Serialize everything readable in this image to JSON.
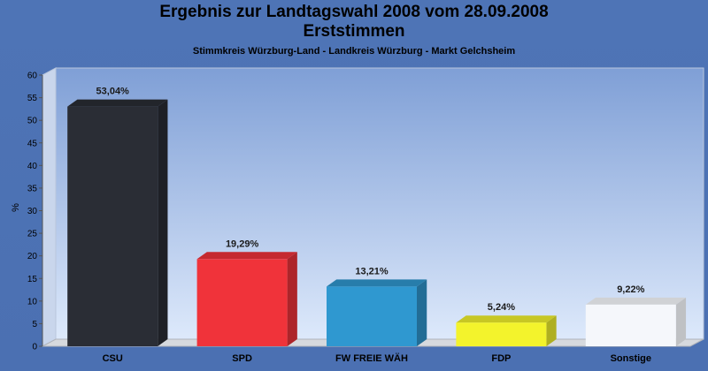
{
  "header": {
    "title_line1": "Ergebnis zur Landtagswahl 2008 vom 28.09.2008",
    "title_line2": "Erststimmen",
    "subtitle": "Stimmkreis Würzburg-Land - Landkreis Würzburg - Markt Gelchsheim"
  },
  "chart_data": {
    "type": "bar",
    "title": "Ergebnis zur Landtagswahl 2008 vom 28.09.2008 Erststimmen",
    "subtitle": "Stimmkreis Würzburg-Land - Landkreis Würzburg - Markt Gelchsheim",
    "xlabel": "",
    "ylabel": "%",
    "ylim": [
      0,
      60
    ],
    "yticks": [
      0,
      5,
      10,
      15,
      20,
      25,
      30,
      35,
      40,
      45,
      50,
      55,
      60
    ],
    "categories": [
      "CSU",
      "SPD",
      "FW FREIE WÄH",
      "FDP",
      "Sonstige"
    ],
    "values": [
      53.04,
      19.29,
      13.21,
      5.24,
      9.22
    ],
    "value_labels": [
      "53,04%",
      "19,29%",
      "13,21%",
      "5,24%",
      "9,22%"
    ],
    "colors": [
      "#2a2d35",
      "#f0333a",
      "#2f98d0",
      "#f3f32c",
      "#f5f7fb"
    ],
    "grid": false,
    "legend": "none"
  }
}
